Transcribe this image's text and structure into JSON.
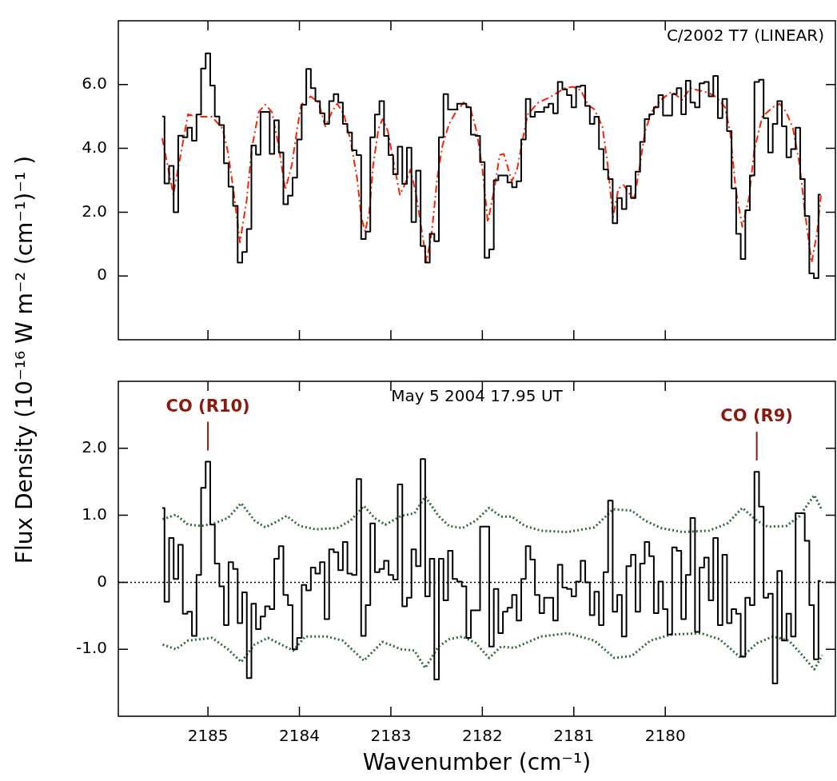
{
  "chart_data": [
    {
      "type": "step",
      "title": "C/2002 T7 (LINEAR)",
      "ylabel": "Flux Density (10⁻¹⁶ W m⁻² (cm⁻¹)⁻¹ )",
      "marker": "none",
      "tick_labels": "y",
      "xlim": [
        2185.98,
        2178.14
      ],
      "xticks": [
        2185,
        2184,
        2183,
        2182,
        2181,
        2180
      ],
      "ylim": [
        -2,
        8
      ],
      "yticks": [
        0,
        {
          "value": 2,
          "label": "2.0"
        },
        {
          "value": 4,
          "label": "4.0"
        },
        {
          "value": 6,
          "label": "6.0"
        }
      ],
      "series": [
        {
          "type": "step",
          "color": "#000000",
          "line_style": "solid",
          "x": [
            2185.5,
            2185.45,
            2185.4,
            2185.35,
            2185.3,
            2185.25,
            2185.2,
            2185.15,
            2185.1,
            2185.05,
            2185,
            2184.95,
            2184.9,
            2184.85,
            2184.8,
            2184.75,
            2184.7,
            2184.65,
            2184.6,
            2184.55,
            2184.5,
            2184.45,
            2184.4,
            2184.35,
            2184.3,
            2184.25,
            2184.2,
            2184.15,
            2184.1,
            2184.05,
            2184,
            2183.95,
            2183.9,
            2183.85,
            2183.8,
            2183.75,
            2183.7,
            2183.65,
            2183.6,
            2183.55,
            2183.5,
            2183.45,
            2183.4,
            2183.35,
            2183.3,
            2183.25,
            2183.2,
            2183.15,
            2183.1,
            2183.05,
            2183,
            2182.95,
            2182.9,
            2182.85,
            2182.8,
            2182.75,
            2182.7,
            2182.65,
            2182.6,
            2182.55,
            2182.5,
            2182.45,
            2182.4,
            2182.35,
            2182.3,
            2182.25,
            2182.2,
            2182.15,
            2182.1,
            2182.05,
            2182,
            2181.95,
            2181.9,
            2181.85,
            2181.8,
            2181.75,
            2181.7,
            2181.65,
            2181.6,
            2181.55,
            2181.5,
            2181.45,
            2181.4,
            2181.35,
            2181.3,
            2181.25,
            2181.2,
            2181.15,
            2181.1,
            2181.05,
            2181,
            2180.95,
            2180.9,
            2180.85,
            2180.8,
            2180.75,
            2180.7,
            2180.65,
            2180.6,
            2180.55,
            2180.5,
            2180.45,
            2180.4,
            2180.35,
            2180.3,
            2180.25,
            2180.2,
            2180.15,
            2180.1,
            2180.05,
            2180,
            2179.95,
            2179.9,
            2179.85,
            2179.8,
            2179.75,
            2179.7,
            2179.65,
            2179.6,
            2179.55,
            2179.5,
            2179.45,
            2179.4,
            2179.35,
            2179.3,
            2179.25,
            2179.2,
            2179.15,
            2179.1,
            2179.05,
            2179,
            2178.95,
            2178.9,
            2178.85,
            2178.8,
            2178.75,
            2178.7,
            2178.65,
            2178.6,
            2178.55,
            2178.5,
            2178.45,
            2178.4,
            2178.35,
            2178.3
          ],
          "values": [
            5.0,
            2.9,
            3.45,
            2.0,
            4.4,
            4.35,
            4.65,
            4.24,
            5.06,
            6.5,
            6.98,
            5.97,
            5.0,
            4.73,
            3.53,
            2.8,
            2.2,
            0.42,
            0.75,
            1.47,
            4.09,
            3.8,
            5.14,
            5.14,
            3.83,
            4.88,
            3.87,
            2.25,
            2.52,
            3.08,
            4.28,
            5.37,
            6.49,
            5.89,
            5.48,
            5.1,
            4.77,
            5.48,
            5.7,
            5.44,
            4.77,
            4.5,
            3.94,
            3.79,
            1.16,
            1.39,
            4.35,
            5.06,
            5.48,
            4.39,
            3.79,
            3.19,
            4.05,
            2.89,
            4.02,
            1.69,
            3.3,
            0.94,
            0.42,
            1.32,
            1.09,
            4.35,
            5.7,
            5.22,
            5.22,
            5.4,
            5.4,
            5.29,
            4.43,
            4.39,
            3.57,
            0.57,
            0.83,
            3.0,
            3.15,
            3.15,
            2.93,
            2.78,
            2.97,
            4.28,
            5.55,
            4.99,
            5.14,
            5.14,
            5.29,
            5.4,
            5.1,
            6.08,
            5.85,
            5.67,
            5.29,
            5.93,
            5.97,
            5.33,
            4.77,
            4.99,
            3.98,
            3.34,
            3.04,
            1.65,
            2.44,
            2.1,
            2.82,
            2.44,
            3.27,
            4.2,
            4.92,
            5.07,
            5.29,
            5.67,
            5.03,
            5.03,
            5.7,
            5.89,
            5.07,
            6.12,
            5.44,
            5.29,
            6.04,
            6.08,
            5.63,
            6.27,
            4.95,
            5.55,
            4.54,
            2.74,
            1.32,
            0.53,
            2.06,
            3.15,
            6.08,
            6.15,
            4.95,
            3.87,
            4.77,
            5.48,
            4.69,
            3.72,
            3.98,
            4.65,
            3.04,
            1.88,
            0.08,
            -0.07,
            2.55
          ]
        },
        {
          "type": "line",
          "color": "#ff2200",
          "line_style": "dashed",
          "x": [
            2185.5,
            2185.378,
            2185.218,
            2185.131,
            2184.956,
            2184.84,
            2184.781,
            2184.723,
            2184.65,
            2184.577,
            2184.519,
            2184.446,
            2184.373,
            2184.3,
            2184.228,
            2184.155,
            2184.082,
            2184.024,
            2183.98,
            2183.878,
            2183.79,
            2183.718,
            2183.645,
            2183.587,
            2183.514,
            2183.441,
            2183.368,
            2183.324,
            2183.281,
            2183.237,
            2183.193,
            2183.135,
            2183.091,
            2183.033,
            2182.975,
            2182.902,
            2182.844,
            2182.785,
            2182.727,
            2182.669,
            2182.61,
            2182.552,
            2182.494,
            2182.436,
            2182.363,
            2182.29,
            2182.203,
            2182.13,
            2182.057,
            2181.999,
            2181.94,
            2181.868,
            2181.81,
            2181.766,
            2181.678,
            2181.62,
            2181.562,
            2181.503,
            2181.387,
            2181.27,
            2181.183,
            2181.096,
            2181.008,
            2180.921,
            2180.848,
            2180.775,
            2180.688,
            2180.63,
            2180.571,
            2180.513,
            2180.455,
            2180.396,
            2180.338,
            2180.28,
            2180.221,
            2180.149,
            2180.047,
            2179.93,
            2179.814,
            2179.726,
            2179.639,
            2179.522,
            2179.435,
            2179.347,
            2179.289,
            2179.231,
            2179.158,
            2179.085,
            2179.027,
            2178.94,
            2178.823,
            2178.75,
            2178.677,
            2178.604,
            2178.531,
            2178.473,
            2178.4,
            2178.342,
            2178.298
          ],
          "values": [
            4.32,
            2.55,
            5.07,
            4.99,
            4.99,
            4.62,
            3.87,
            2.74,
            1.05,
            2.37,
            4.02,
            5.14,
            5.37,
            5.14,
            4.09,
            2.7,
            3.49,
            4.62,
            5.37,
            5.63,
            5.44,
            4.69,
            5.14,
            5.4,
            5.07,
            4.24,
            3.04,
            1.84,
            1.39,
            1.99,
            3.49,
            4.62,
            4.92,
            4.54,
            3.64,
            2.55,
            2.89,
            3.34,
            2.59,
            1.54,
            0.45,
            1.39,
            3.04,
            4.09,
            4.77,
            5.14,
            5.44,
            5.25,
            4.47,
            3.34,
            1.69,
            2.74,
            3.79,
            3.83,
            2.97,
            3.34,
            4.24,
            5.07,
            5.44,
            5.59,
            5.74,
            5.89,
            5.93,
            5.82,
            5.37,
            5.22,
            4.69,
            3.49,
            1.84,
            2.74,
            2.85,
            2.59,
            2.44,
            3.42,
            4.54,
            5.14,
            5.52,
            5.78,
            5.52,
            5.89,
            5.82,
            5.74,
            5.59,
            5.29,
            4.47,
            2.74,
            1.54,
            2.44,
            3.94,
            4.99,
            5.29,
            5.4,
            5.14,
            4.62,
            3.49,
            1.99,
            0.42,
            1.32,
            2.52
          ]
        }
      ]
    },
    {
      "type": "step",
      "title": "May 5 2004 17.95 UT",
      "xlabel": "Wavenumber (cm⁻¹)",
      "marker": "none",
      "xlim": [
        2185.98,
        2178.14
      ],
      "xticks": [
        2185,
        2184,
        2183,
        2182,
        2181,
        2180
      ],
      "ylim": [
        -2,
        3
      ],
      "yticks": [
        {
          "value": -1,
          "label": "-1.0"
        },
        0,
        {
          "value": 1,
          "label": "1.0"
        },
        {
          "value": 2,
          "label": "2.0"
        }
      ],
      "ref_lines": [
        {
          "axis": "y",
          "value": 0,
          "color": "#000000",
          "line_style": "dotted"
        }
      ],
      "annotations": [
        {
          "text": "CO (R10)",
          "x": 2185,
          "y": 1.8
        },
        {
          "text": "CO (R9)",
          "x": 2179,
          "y": 1.65
        }
      ],
      "series": [
        {
          "type": "step",
          "color": "#000000",
          "line_style": "solid",
          "x": [
            2185.5,
            2185.45,
            2185.4,
            2185.35,
            2185.3,
            2185.25,
            2185.2,
            2185.15,
            2185.1,
            2185.05,
            2185,
            2184.95,
            2184.9,
            2184.85,
            2184.8,
            2184.75,
            2184.7,
            2184.65,
            2184.6,
            2184.55,
            2184.5,
            2184.45,
            2184.4,
            2184.35,
            2184.3,
            2184.25,
            2184.2,
            2184.15,
            2184.1,
            2184.05,
            2184,
            2183.95,
            2183.9,
            2183.85,
            2183.8,
            2183.75,
            2183.7,
            2183.65,
            2183.6,
            2183.55,
            2183.5,
            2183.45,
            2183.4,
            2183.35,
            2183.3,
            2183.25,
            2183.2,
            2183.15,
            2183.1,
            2183.05,
            2183,
            2182.95,
            2182.9,
            2182.85,
            2182.8,
            2182.75,
            2182.7,
            2182.65,
            2182.6,
            2182.55,
            2182.5,
            2182.45,
            2182.4,
            2182.35,
            2182.3,
            2182.25,
            2182.2,
            2182.15,
            2182.1,
            2182.05,
            2182,
            2181.95,
            2181.9,
            2181.85,
            2181.8,
            2181.75,
            2181.7,
            2181.65,
            2181.6,
            2181.55,
            2181.5,
            2181.45,
            2181.4,
            2181.35,
            2181.3,
            2181.25,
            2181.2,
            2181.15,
            2181.1,
            2181.05,
            2181,
            2180.95,
            2180.9,
            2180.85,
            2180.8,
            2180.75,
            2180.7,
            2180.65,
            2180.6,
            2180.55,
            2180.5,
            2180.45,
            2180.4,
            2180.35,
            2180.3,
            2180.25,
            2180.2,
            2180.15,
            2180.1,
            2180.05,
            2180,
            2179.95,
            2179.9,
            2179.85,
            2179.8,
            2179.75,
            2179.7,
            2179.65,
            2179.6,
            2179.55,
            2179.5,
            2179.45,
            2179.4,
            2179.35,
            2179.3,
            2179.25,
            2179.2,
            2179.15,
            2179.1,
            2179.05,
            2179,
            2178.95,
            2178.9,
            2178.85,
            2178.8,
            2178.75,
            2178.7,
            2178.65,
            2178.6,
            2178.55,
            2178.5,
            2178.45,
            2178.4,
            2178.35,
            2178.3
          ],
          "values": [
            1.11,
            -0.29,
            0.66,
            0.05,
            0.56,
            -0.47,
            -0.44,
            -0.8,
            0.11,
            1.41,
            1.8,
            0.86,
            0.28,
            -0.06,
            -0.64,
            0.3,
            0.2,
            -0.61,
            -0.15,
            -1.43,
            -0.32,
            -0.7,
            -0.51,
            -0.36,
            -0.4,
            0.35,
            0.54,
            -0.19,
            -0.34,
            -1.0,
            -0.83,
            -0.04,
            -0.12,
            0.22,
            0.13,
            0.3,
            -0.55,
            0.49,
            0.45,
            0.18,
            0.6,
            0.13,
            0.11,
            1.54,
            -0.8,
            -0.34,
            0.88,
            0.15,
            0.2,
            0.32,
            0.11,
            0.04,
            1.46,
            -0.36,
            -0.23,
            0.49,
            0.24,
            1.84,
            -0.21,
            0.35,
            -1.45,
            0.35,
            -0.27,
            0.47,
            0.05,
            0.01,
            -0.06,
            -0.83,
            -0.42,
            -0.42,
            0.83,
            0.83,
            -0.96,
            -0.1,
            -0.76,
            -0.44,
            -0.38,
            -0.19,
            -0.57,
            0.05,
            0.54,
            0.34,
            -0.19,
            -0.46,
            -0.23,
            -0.23,
            -0.57,
            0.26,
            -0.08,
            -0.1,
            -0.21,
            0.01,
            0.32,
            0.0,
            -0.49,
            -0.14,
            -0.64,
            0.15,
            1.22,
            -0.44,
            -0.19,
            -0.81,
            0.24,
            0.41,
            -0.44,
            0.28,
            0.6,
            0.39,
            -0.46,
            0.01,
            -0.4,
            -0.78,
            0.52,
            0.47,
            -0.55,
            0.11,
            0.96,
            -0.74,
            0.22,
            0.37,
            -0.27,
            0.66,
            -0.64,
            0.41,
            -0.61,
            -0.4,
            -0.47,
            -1.11,
            -0.23,
            -0.34,
            1.65,
            1.13,
            -0.23,
            -0.17,
            -1.51,
            0.17,
            -0.87,
            -0.47,
            -0.81,
            1.03,
            1.03,
            0.62,
            -0.34,
            -1.15,
            0.02
          ]
        },
        {
          "type": "line",
          "color": "#2e6b3a",
          "line_style": "dotted",
          "x": [
            2185.495,
            2185.35,
            2185.218,
            2185.073,
            2184.927,
            2184.781,
            2184.636,
            2184.49,
            2184.373,
            2184.257,
            2184.14,
            2183.995,
            2183.82,
            2183.587,
            2183.441,
            2183.295,
            2183.179,
            2183.062,
            2182.887,
            2182.742,
            2182.625,
            2182.48,
            2182.363,
            2182.217,
            2182.071,
            2181.926,
            2181.795,
            2181.678,
            2181.533,
            2181.358,
            2181.066,
            2180.775,
            2180.571,
            2180.367,
            2180.221,
            2180.047,
            2179.814,
            2179.522,
            2179.318,
            2179.158,
            2178.998,
            2178.881,
            2178.677,
            2178.531,
            2178.371,
            2178.284
          ],
          "values": [
            0.94,
            1.01,
            0.86,
            0.84,
            0.88,
            0.96,
            1.18,
            0.92,
            0.82,
            0.9,
            0.99,
            0.84,
            0.79,
            0.81,
            0.92,
            1.14,
            0.96,
            0.86,
            0.99,
            1.03,
            1.28,
            0.99,
            0.84,
            0.81,
            0.92,
            1.11,
            0.98,
            0.98,
            0.84,
            0.77,
            0.75,
            0.82,
            1.09,
            1.07,
            0.92,
            0.81,
            0.75,
            0.77,
            0.88,
            1.11,
            0.92,
            0.83,
            0.84,
            0.99,
            1.3,
            1.07
          ]
        },
        {
          "type": "line",
          "color": "#2e6b3a",
          "line_style": "dotted",
          "x": [
            2185.495,
            2185.35,
            2185.218,
            2184.956,
            2184.781,
            2184.636,
            2184.49,
            2184.344,
            2184.198,
            2184.067,
            2183.936,
            2183.703,
            2183.528,
            2183.295,
            2183.091,
            2182.887,
            2182.742,
            2182.625,
            2182.48,
            2182.363,
            2182.217,
            2182.071,
            2181.926,
            2181.795,
            2181.649,
            2181.358,
            2181.066,
            2180.775,
            2180.557,
            2180.367,
            2180.163,
            2179.93,
            2179.61,
            2179.406,
            2179.173,
            2178.998,
            2178.823,
            2178.648,
            2178.502,
            2178.371,
            2178.284
          ],
          "values": [
            -0.93,
            -1.0,
            -0.87,
            -0.83,
            -1.0,
            -1.19,
            -0.93,
            -0.83,
            -0.93,
            -1.02,
            -0.81,
            -0.81,
            -0.87,
            -1.17,
            -0.89,
            -1.0,
            -1.02,
            -1.28,
            -0.96,
            -0.85,
            -0.81,
            -0.91,
            -1.13,
            -0.96,
            -0.98,
            -0.81,
            -0.76,
            -0.87,
            -1.13,
            -1.1,
            -0.87,
            -0.78,
            -0.76,
            -0.85,
            -1.13,
            -0.91,
            -0.81,
            -0.87,
            -1.09,
            -1.3,
            -1.09
          ]
        }
      ]
    }
  ]
}
